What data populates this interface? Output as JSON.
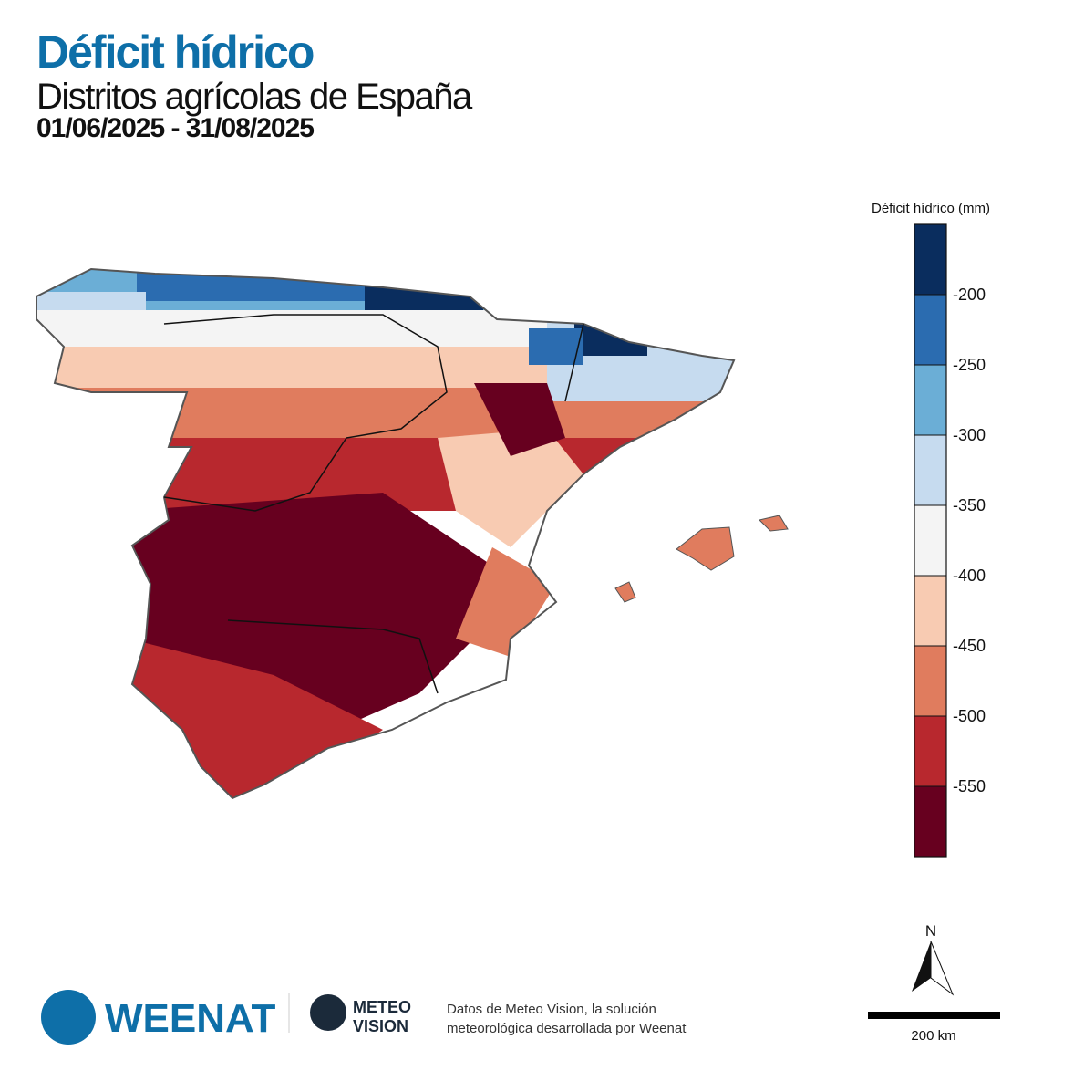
{
  "header": {
    "title": "Déficit hídrico",
    "subtitle": "Distritos agrícolas de España",
    "period": "01/06/2025 - 31/08/2025"
  },
  "legend": {
    "title": "Déficit hídrico (mm)",
    "bins": [
      -600,
      -550,
      -500,
      -450,
      -400,
      -350,
      -300,
      -250,
      -200,
      -150
    ],
    "colors": [
      "#67001f",
      "#b8282e",
      "#e07c5e",
      "#f8cbb2",
      "#f4f4f4",
      "#c6dbef",
      "#6baed6",
      "#2b6cb0",
      "#0a2d5e"
    ],
    "yticks": [
      -550,
      -500,
      -450,
      -400,
      -350,
      -300,
      -250,
      -200
    ]
  },
  "north": "N",
  "scale_bar": "200 km",
  "footer": {
    "brand": "WEENAT",
    "partner": [
      "METEO",
      "VISION"
    ],
    "credit": [
      "Datos de Meteo Vision, la solución",
      "meteorológica desarrollada por Weenat"
    ]
  }
}
